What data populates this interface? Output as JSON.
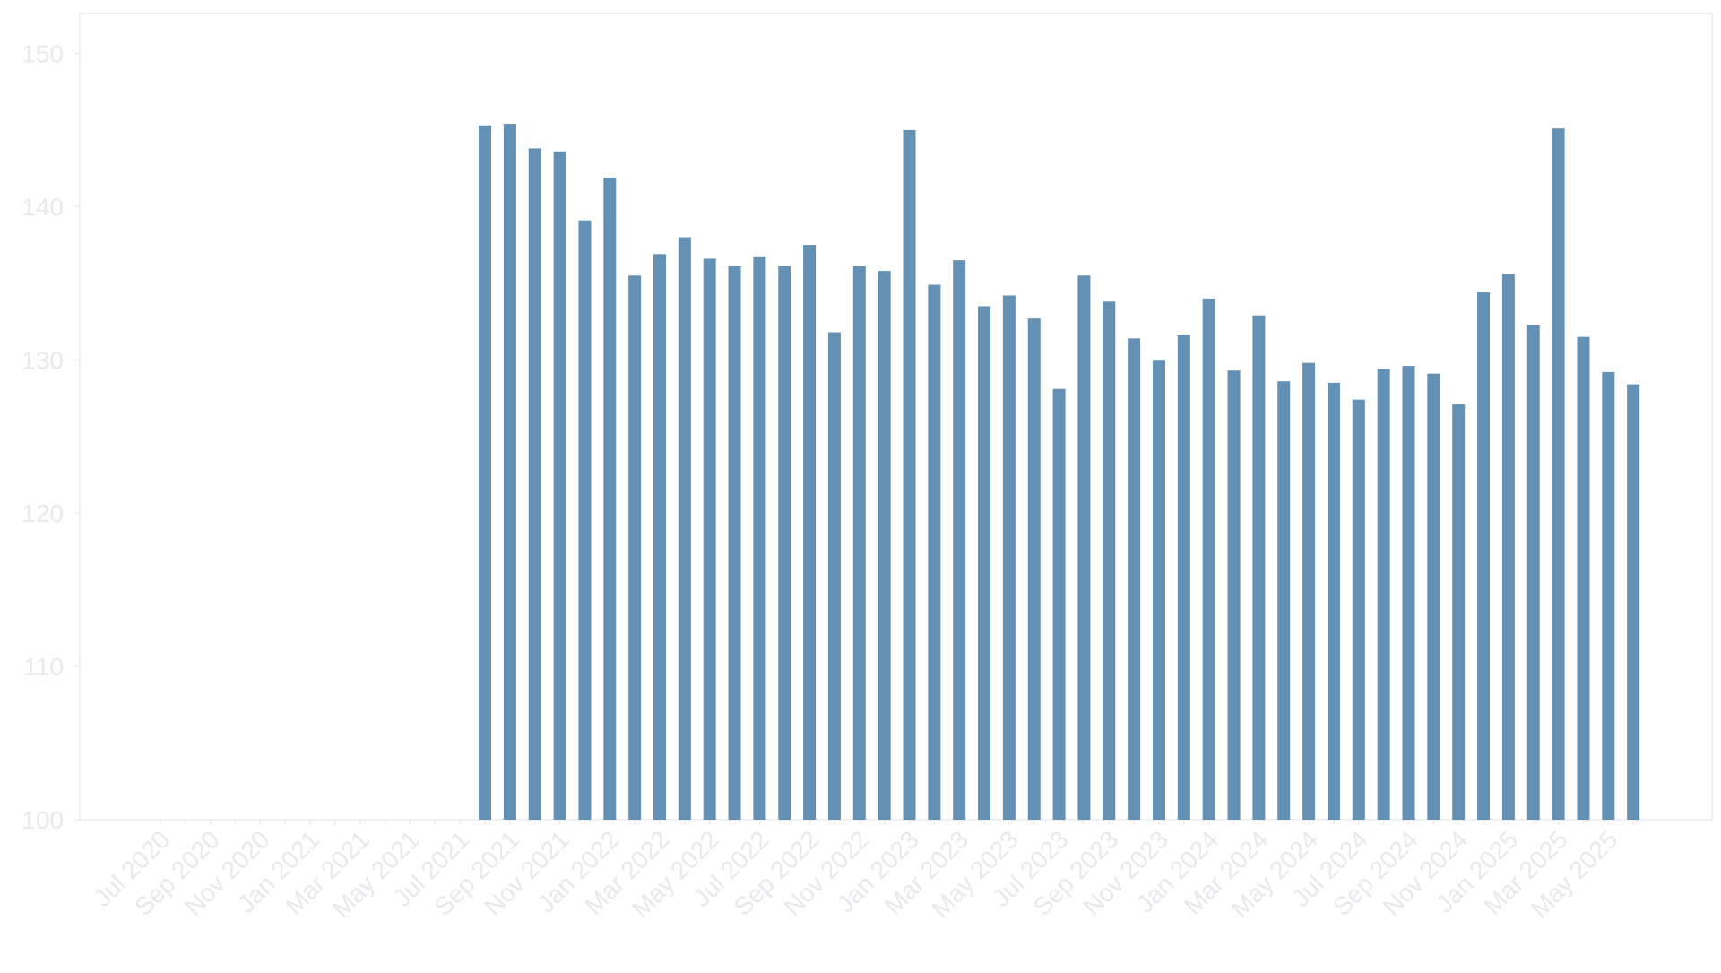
{
  "chart_data": {
    "type": "bar",
    "title": "",
    "xlabel": "",
    "ylabel": "",
    "ylim": [
      100,
      152.6
    ],
    "yticks": [
      100,
      110,
      120,
      130,
      140,
      150
    ],
    "grid": false,
    "legend": "none",
    "bar_color": "#6490b4",
    "axis_text_color": "#e8e8ee",
    "frame_color": "#ececf0",
    "categories": [
      "Jul 2020",
      "Aug 2020",
      "Sep 2020",
      "Oct 2020",
      "Nov 2020",
      "Dec 2020",
      "Jan 2021",
      "Feb 2021",
      "Mar 2021",
      "Apr 2021",
      "May 2021",
      "Jun 2021",
      "Jul 2021",
      "Aug 2021",
      "Sep 2021",
      "Oct 2021",
      "Nov 2021",
      "Dec 2021",
      "Jan 2022",
      "Feb 2022",
      "Mar 2022",
      "Apr 2022",
      "May 2022",
      "Jun 2022",
      "Jul 2022",
      "Aug 2022",
      "Sep 2022",
      "Oct 2022",
      "Nov 2022",
      "Dec 2022",
      "Jan 2023",
      "Feb 2023",
      "Mar 2023",
      "Apr 2023",
      "May 2023",
      "Jun 2023",
      "Jul 2023",
      "Aug 2023",
      "Sep 2023",
      "Oct 2023",
      "Nov 2023",
      "Dec 2023",
      "Jan 2024",
      "Feb 2024",
      "Mar 2024",
      "Apr 2024",
      "May 2024",
      "Jun 2024",
      "Jul 2024",
      "Aug 2024",
      "Sep 2024",
      "Oct 2024",
      "Nov 2024",
      "Dec 2024",
      "Jan 2025",
      "Feb 2025",
      "Mar 2025",
      "Apr 2025",
      "May 2025",
      "Jun 2025"
    ],
    "tick_labels": [
      "Jul 2020",
      "Sep 2020",
      "Nov 2020",
      "Jan 2021",
      "Mar 2021",
      "May 2021",
      "Jul 2021",
      "Sep 2021",
      "Nov 2021",
      "Jan 2022",
      "Mar 2022",
      "May 2022",
      "Jul 2022",
      "Sep 2022",
      "Nov 2022",
      "Jan 2023",
      "Mar 2023",
      "May 2023",
      "Jul 2023",
      "Sep 2023",
      "Nov 2023",
      "Jan 2024",
      "Mar 2024",
      "May 2024",
      "Jul 2024",
      "Sep 2024",
      "Nov 2024",
      "Jan 2025",
      "Mar 2025",
      "May 2025"
    ],
    "values": [
      null,
      null,
      null,
      null,
      null,
      null,
      null,
      null,
      null,
      null,
      null,
      null,
      null,
      145.3,
      145.4,
      143.8,
      143.6,
      139.1,
      141.9,
      135.5,
      136.9,
      138.0,
      136.6,
      136.1,
      136.7,
      136.1,
      137.5,
      131.8,
      136.1,
      135.8,
      145.0,
      134.9,
      136.5,
      133.5,
      134.2,
      132.7,
      128.1,
      135.5,
      133.8,
      131.4,
      130.0,
      131.6,
      134.0,
      129.3,
      132.9,
      128.6,
      129.8,
      128.5,
      127.4,
      129.4,
      129.6,
      129.1,
      127.1,
      134.4,
      135.6,
      132.3,
      145.1,
      131.5,
      129.2,
      128.4
    ]
  }
}
